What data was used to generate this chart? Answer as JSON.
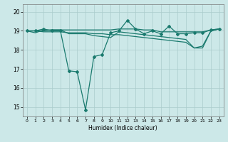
{
  "title": "",
  "xlabel": "Humidex (Indice chaleur)",
  "ylabel": "",
  "bg_color": "#cce8e8",
  "grid_color": "#aacccc",
  "line_color": "#1a7a6e",
  "xlim": [
    -0.5,
    23.5
  ],
  "ylim": [
    14.5,
    20.4
  ],
  "yticks": [
    15,
    16,
    17,
    18,
    19,
    20
  ],
  "xticks": [
    0,
    1,
    2,
    3,
    4,
    5,
    6,
    7,
    8,
    9,
    10,
    11,
    12,
    13,
    14,
    15,
    16,
    17,
    18,
    19,
    20,
    21,
    22,
    23
  ],
  "series": [
    {
      "x": [
        0,
        1,
        2,
        3,
        4,
        5,
        6,
        7,
        8,
        9,
        10,
        11,
        12,
        13,
        14,
        15,
        16,
        17,
        18,
        19,
        20,
        21,
        22,
        23
      ],
      "y": [
        19.0,
        19.0,
        19.1,
        19.0,
        19.0,
        16.9,
        16.85,
        14.85,
        17.65,
        17.75,
        18.9,
        19.0,
        19.55,
        19.1,
        18.85,
        19.0,
        18.85,
        19.25,
        18.85,
        18.85,
        18.9,
        18.9,
        19.05,
        19.1
      ],
      "marker": "D",
      "markersize": 2.0,
      "linewidth": 0.9
    },
    {
      "x": [
        0,
        1,
        2,
        3,
        4,
        5,
        6,
        7,
        8,
        9,
        10,
        11,
        12,
        13,
        14,
        15,
        16,
        17,
        18,
        19,
        20,
        21,
        22,
        23
      ],
      "y": [
        19.0,
        18.9,
        19.05,
        19.05,
        19.05,
        18.85,
        18.85,
        18.85,
        18.75,
        18.7,
        18.65,
        18.95,
        18.9,
        18.85,
        18.8,
        18.75,
        18.7,
        18.65,
        18.6,
        18.55,
        18.1,
        18.1,
        19.0,
        19.1
      ],
      "marker": null,
      "markersize": 0,
      "linewidth": 0.9
    },
    {
      "x": [
        0,
        1,
        2,
        3,
        4,
        5,
        6,
        7,
        8,
        9,
        10,
        11,
        12,
        13,
        14,
        15,
        16,
        17,
        18,
        19,
        20,
        21,
        22,
        23
      ],
      "y": [
        19.0,
        19.0,
        19.0,
        19.05,
        19.05,
        19.05,
        19.05,
        19.05,
        19.05,
        19.05,
        19.05,
        19.1,
        19.1,
        19.1,
        19.05,
        19.05,
        18.95,
        18.95,
        18.95,
        18.95,
        18.95,
        18.95,
        19.05,
        19.1
      ],
      "marker": null,
      "markersize": 0,
      "linewidth": 0.9
    },
    {
      "x": [
        0,
        1,
        2,
        3,
        4,
        5,
        6,
        7,
        8,
        9,
        10,
        11,
        12,
        13,
        14,
        15,
        16,
        17,
        18,
        19,
        20,
        21,
        22,
        23
      ],
      "y": [
        19.0,
        19.0,
        18.95,
        18.95,
        18.95,
        18.9,
        18.9,
        18.9,
        18.85,
        18.85,
        18.8,
        18.8,
        18.75,
        18.7,
        18.65,
        18.6,
        18.55,
        18.5,
        18.45,
        18.4,
        18.1,
        18.2,
        19.0,
        19.1
      ],
      "marker": null,
      "markersize": 0,
      "linewidth": 0.9
    }
  ]
}
